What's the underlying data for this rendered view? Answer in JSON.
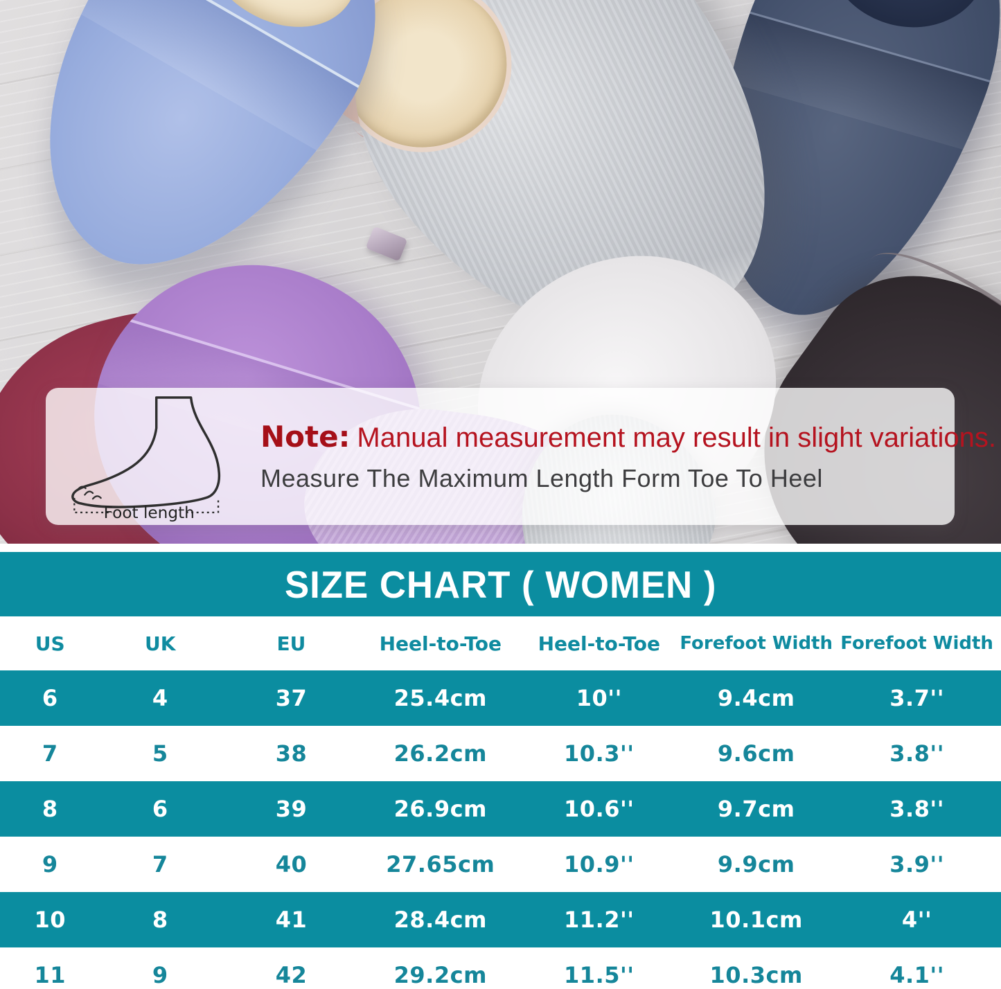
{
  "photo": {
    "wood_floor_color": "#d6d4d5",
    "slippers": [
      {
        "name": "blue slipper",
        "color": "#93a9dc"
      },
      {
        "name": "beige slipper",
        "color": "#e5cabb"
      },
      {
        "name": "light gray slipper",
        "color": "#c6c9ce"
      },
      {
        "name": "navy slipper",
        "color": "#44516d"
      },
      {
        "name": "purple slipper",
        "color": "#a87cc9"
      },
      {
        "name": "burgundy slipper",
        "color": "#8a2f45"
      },
      {
        "name": "lavender slipper",
        "color": "#c3a7d8"
      },
      {
        "name": "gray slipper toe",
        "color": "#ced2d6"
      },
      {
        "name": "dark brown slipper",
        "color": "#383136"
      },
      {
        "name": "white slipper",
        "color": "#efedef"
      }
    ]
  },
  "note": {
    "label": "Note:",
    "text": "Manual measurement may result in slight variations.",
    "subtext": "Measure The Maximum Length Form Toe To Heel",
    "foot_caption": "Foot length",
    "red": "#b5131f",
    "dark": "#3d3d3f"
  },
  "chart_data": {
    "type": "table",
    "title": "SIZE CHART ( WOMEN )",
    "teal": "#0b8da0",
    "columns": [
      "US",
      "UK",
      "EU",
      "Heel-to-Toe",
      "Heel-to-Toe",
      "Forefoot Width",
      "Forefoot Width"
    ],
    "rows": [
      [
        "6",
        "4",
        "37",
        "25.4cm",
        "10''",
        "9.4cm",
        "3.7''"
      ],
      [
        "7",
        "5",
        "38",
        "26.2cm",
        "10.3''",
        "9.6cm",
        "3.8''"
      ],
      [
        "8",
        "6",
        "39",
        "26.9cm",
        "10.6''",
        "9.7cm",
        "3.8''"
      ],
      [
        "9",
        "7",
        "40",
        "27.65cm",
        "10.9''",
        "9.9cm",
        "3.9''"
      ],
      [
        "10",
        "8",
        "41",
        "28.4cm",
        "11.2''",
        "10.1cm",
        "4''"
      ],
      [
        "11",
        "9",
        "42",
        "29.2cm",
        "11.5''",
        "10.3cm",
        "4.1''"
      ]
    ]
  }
}
